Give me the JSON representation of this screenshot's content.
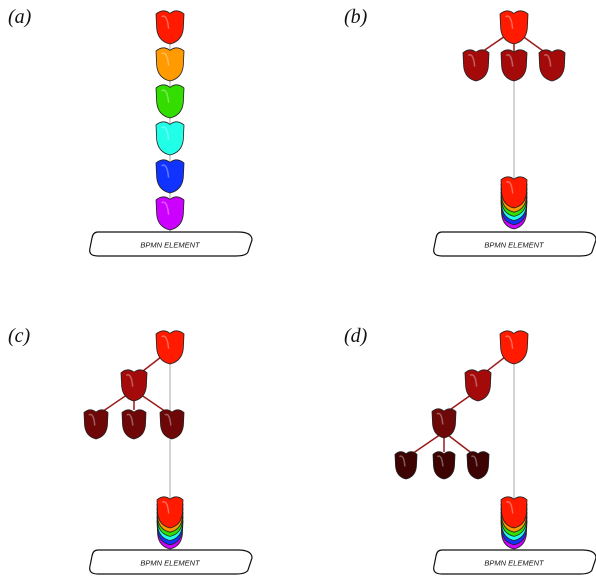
{
  "colors": {
    "stack": [
      "#ff1a00",
      "#ff9a00",
      "#33dd00",
      "#22ffe8",
      "#1133ff",
      "#cc00ff"
    ],
    "level1": "#a50a0a",
    "level2": "#6e0707",
    "level3": "#3d0303",
    "link": "#9b1a1a",
    "connector": "#aaaaaa"
  },
  "panels": [
    {
      "label": "(a)",
      "element_label": "BPMN ELEMENT"
    },
    {
      "label": "(b)",
      "element_label": "BPMN ELEMENT"
    },
    {
      "label": "(c)",
      "element_label": "BPMN ELEMENT"
    },
    {
      "label": "(d)",
      "element_label": "BPMN ELEMENT"
    }
  ]
}
